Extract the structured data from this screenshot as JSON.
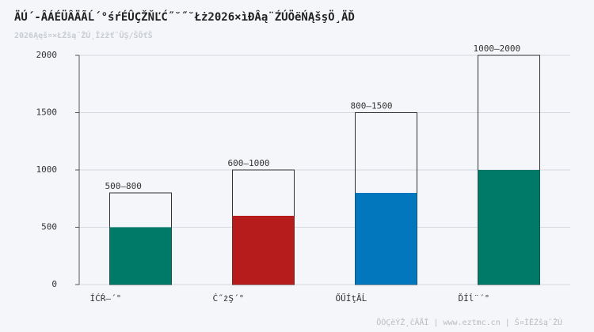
{
  "chart_data": {
    "type": "range_bar",
    "title": "ÄÚ´-ÂÁÉÜÂÄÃĹ´°śŕÉÛÇŽŇĽĆ˝˘˝˘Łż2026×ìĐÂą¨ŹÚÖëŃĄšşÖ¸ÄĎ",
    "subtitle": "2026Ąęš¤×ŁŹšą¨ŽÚ¸Îżžť¨ÛŞ/ŠÖťŠ",
    "footer": "ÕÒÇëÝŽ¸ĉÃÅÎ | www.eztmc.cn | Š¤ÌĚŹšą¨ŽÚ",
    "categories": [
      "ÍĆŔ–´°",
      "Ć˝żŞ´°",
      "ŐŰÍţÂĹ",
      "ĎÍĺ¨´°"
    ],
    "low": [
      500,
      600,
      800,
      1000
    ],
    "high": [
      800,
      1000,
      1500,
      2000
    ],
    "value_labels": [
      "500–800",
      "600–1000",
      "800–1500",
      "1000–2000"
    ],
    "colors": [
      "#007a68",
      "#b71c1c",
      "#0277bd",
      "#007a68"
    ],
    "ylim": [
      0,
      2000
    ],
    "yticks": [
      0,
      500,
      1000,
      1500,
      2000
    ],
    "grid": true
  }
}
